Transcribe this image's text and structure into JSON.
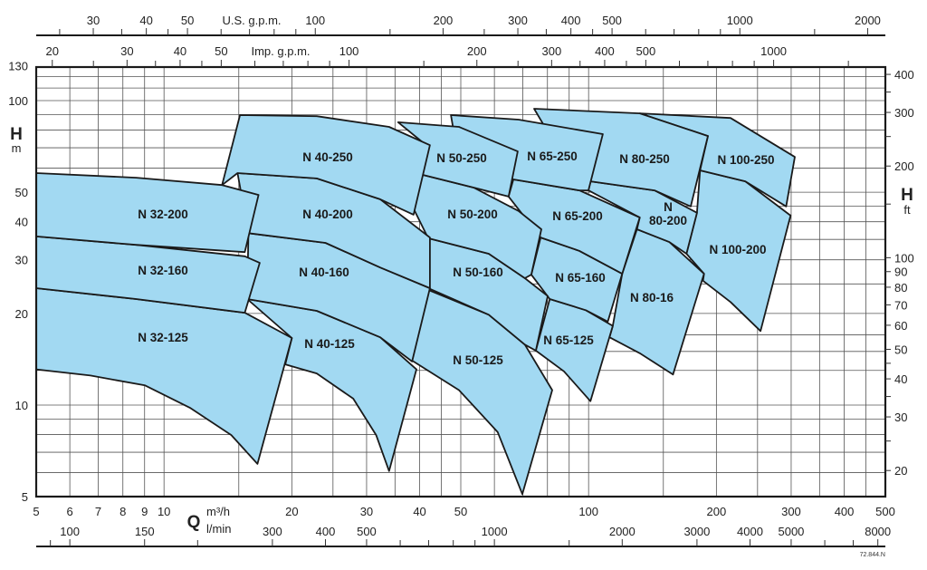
{
  "chart_data": {
    "type": "area",
    "x_scale": "log",
    "y_scale": "log",
    "xlim": [
      5,
      500
    ],
    "ylim": [
      5,
      130
    ],
    "grid": true,
    "fill_color": "#a2d9f2",
    "stroke_color": "#1a1a1a",
    "x_axes": {
      "m3h": {
        "symbol": "Q",
        "label": "m³/h",
        "ticks": [
          5,
          6,
          7,
          8,
          9,
          10,
          20,
          30,
          40,
          50,
          100,
          200,
          300,
          400,
          500
        ]
      },
      "lmin": {
        "label": "l/min",
        "ticks": [
          100,
          150,
          300,
          400,
          500,
          1000,
          2000,
          3000,
          4000,
          5000,
          8000
        ],
        "minor": [
          90,
          200,
          600,
          700,
          800,
          900,
          1500,
          6000,
          7000
        ]
      },
      "us_gpm": {
        "label": "U.S. g.p.m.",
        "ticks": [
          30,
          40,
          50,
          100,
          200,
          300,
          400,
          500,
          1000,
          2000
        ],
        "minor": [
          25,
          35,
          45,
          60,
          70,
          80,
          90,
          150,
          250,
          350,
          450,
          600,
          700,
          800,
          900,
          1500
        ]
      },
      "imp_gpm": {
        "label": "Imp. g.p.m.",
        "ticks": [
          20,
          30,
          40,
          50,
          100,
          200,
          300,
          400,
          500,
          1000
        ],
        "minor": [
          25,
          35,
          45,
          60,
          70,
          80,
          90,
          150,
          250,
          350,
          450,
          600,
          700,
          800,
          900,
          1500
        ]
      }
    },
    "y_axes": {
      "m": {
        "symbol": "H",
        "unit": "m",
        "ticks": [
          5,
          10,
          20,
          30,
          40,
          50,
          100,
          130
        ]
      },
      "ft": {
        "symbol": "H",
        "unit": "ft",
        "ticks": [
          20,
          30,
          40,
          50,
          60,
          70,
          80,
          90,
          100,
          200,
          300,
          400
        ],
        "minor": [
          25,
          35,
          45,
          150,
          250,
          350
        ]
      }
    },
    "grid_x": [
      6,
      7,
      8,
      9,
      10,
      15,
      20,
      25,
      30,
      35,
      40,
      45,
      50,
      60,
      70,
      80,
      90,
      100,
      150,
      200,
      250,
      300,
      350,
      400,
      450
    ],
    "grid_y": [
      6,
      7,
      8,
      9,
      10,
      13,
      15,
      17,
      20,
      25,
      30,
      35,
      40,
      45,
      50,
      60,
      70,
      80,
      90,
      100,
      110,
      120
    ],
    "series": [
      {
        "name": "N 100-200",
        "points": [
          [
            183,
            59.0
          ],
          [
            234,
            54.3
          ],
          [
            299,
            41.9
          ],
          [
            254,
            17.5
          ],
          [
            216,
            21.8
          ],
          [
            186,
            25.6
          ],
          [
            187,
            27.0
          ],
          [
            170,
            31.4
          ],
          [
            180,
            42.8
          ]
        ]
      },
      {
        "name": "N 100-250",
        "points": [
          [
            132,
            90.8
          ],
          [
            216,
            87.7
          ],
          [
            306,
            65.3
          ],
          [
            292,
            44.9
          ],
          [
            234,
            54.3
          ],
          [
            183,
            59.0
          ],
          [
            191,
            76.5
          ]
        ]
      },
      {
        "name": "N 80-16",
        "points": [
          [
            130,
            37.8
          ],
          [
            155,
            34.3
          ],
          [
            187,
            27.0
          ],
          [
            158,
            12.6
          ],
          [
            132,
            14.8
          ],
          [
            112,
            16.7
          ],
          [
            114,
            18.2
          ],
          [
            120,
            27.0
          ]
        ]
      },
      {
        "name": "N 80-200",
        "points": [
          [
            101,
            54.3
          ],
          [
            143,
            50.7
          ],
          [
            180,
            42.8
          ],
          [
            170,
            31.4
          ],
          [
            155,
            34.3
          ],
          [
            130,
            37.8
          ],
          [
            132,
            41.3
          ],
          [
            99.9,
            50.7
          ]
        ]
      },
      {
        "name": "N 80-250",
        "points": [
          [
            74.4,
            94.0
          ],
          [
            132,
            90.8
          ],
          [
            191,
            76.5
          ],
          [
            174,
            44.9
          ],
          [
            143,
            50.7
          ],
          [
            101,
            54.3
          ],
          [
            90,
            60
          ]
        ]
      },
      {
        "name": "N 65-125",
        "points": [
          [
            81.0,
            22.3
          ],
          [
            98.5,
            20.5
          ],
          [
            114,
            18.2
          ],
          [
            101,
            10.3
          ],
          [
            87.5,
            12.9
          ],
          [
            75.1,
            15.1
          ]
        ]
      },
      {
        "name": "N 65-160",
        "points": [
          [
            77.1,
            35.5
          ],
          [
            95.1,
            32.1
          ],
          [
            120,
            27.0
          ],
          [
            111,
            18.8
          ],
          [
            98.5,
            20.5
          ],
          [
            81.0,
            22.3
          ],
          [
            73.3,
            26.8
          ]
        ]
      },
      {
        "name": "N 65-200",
        "points": [
          [
            66.5,
            55.1
          ],
          [
            95.1,
            50.7
          ],
          [
            132,
            41.3
          ],
          [
            120,
            27.0
          ],
          [
            95.1,
            32.1
          ],
          [
            77.1,
            35.5
          ],
          [
            64.8,
            48.4
          ]
        ]
      },
      {
        "name": "N 65-250",
        "points": [
          [
            47.4,
            89.6
          ],
          [
            68.4,
            86.6
          ],
          [
            108,
            77.6
          ],
          [
            99.9,
            50.7
          ],
          [
            95.1,
            50.7
          ],
          [
            66.5,
            55.1
          ],
          [
            50,
            58
          ]
        ]
      },
      {
        "name": "N 50-125",
        "points": [
          [
            41.9,
            23.9
          ],
          [
            58.2,
            19.8
          ],
          [
            70.8,
            15.8
          ],
          [
            82.1,
            11.2
          ],
          [
            69.8,
            5.1
          ],
          [
            61.1,
            8.15
          ],
          [
            49.5,
            11.2
          ],
          [
            38.4,
            14.0
          ]
        ]
      },
      {
        "name": "N 50-160",
        "points": [
          [
            41.9,
            35.3
          ],
          [
            58.2,
            31.4
          ],
          [
            70.8,
            26.1
          ],
          [
            80.1,
            22.8
          ],
          [
            75.1,
            15.1
          ],
          [
            70.8,
            15.8
          ],
          [
            58.2,
            19.8
          ],
          [
            41.9,
            24.2
          ],
          [
            39.7,
            26.1
          ]
        ]
      },
      {
        "name": "N 50-200",
        "points": [
          [
            40.7,
            57.0
          ],
          [
            53.6,
            51.8
          ],
          [
            68.4,
            43.4
          ],
          [
            77.4,
            37.8
          ],
          [
            73.3,
            26.8
          ],
          [
            70.8,
            26.1
          ],
          [
            58.2,
            31.4
          ],
          [
            41.9,
            35.3
          ],
          [
            38.4,
            45.2
          ]
        ]
      },
      {
        "name": "N 50-250",
        "points": [
          [
            35.6,
            84.9
          ],
          [
            49.5,
            82.0
          ],
          [
            68.1,
            68.1
          ],
          [
            64.8,
            48.4
          ],
          [
            53.6,
            51.8
          ],
          [
            40.7,
            57.0
          ],
          [
            38.4,
            45.8
          ],
          [
            41.9,
            70.5
          ]
        ]
      },
      {
        "name": "N 40-125",
        "points": [
          [
            15.7,
            22.3
          ],
          [
            22.9,
            20.4
          ],
          [
            32.3,
            16.7
          ],
          [
            39.3,
            13.1
          ],
          [
            33.9,
            6.07
          ],
          [
            31.6,
            7.97
          ],
          [
            27.9,
            10.5
          ],
          [
            22.9,
            12.7
          ],
          [
            19.3,
            13.6
          ],
          [
            20.0,
            16.6
          ]
        ]
      },
      {
        "name": "N 40-160",
        "points": [
          [
            15.8,
            36.7
          ],
          [
            24.0,
            34.1
          ],
          [
            32.3,
            28.3
          ],
          [
            42.3,
            24.2
          ],
          [
            38.4,
            13.9
          ],
          [
            32.3,
            16.7
          ],
          [
            22.9,
            20.4
          ],
          [
            15.7,
            22.3
          ]
        ]
      },
      {
        "name": "N 40-200",
        "points": [
          [
            14.9,
            57.8
          ],
          [
            22.9,
            55.5
          ],
          [
            32.3,
            47.4
          ],
          [
            42.3,
            35.5
          ],
          [
            42.3,
            24.2
          ],
          [
            32.3,
            28.3
          ],
          [
            24.0,
            34.1
          ],
          [
            15.8,
            36.7
          ]
        ]
      },
      {
        "name": "N 40-250",
        "points": [
          [
            15.1,
            89.6
          ],
          [
            22.9,
            88.9
          ],
          [
            33.9,
            82.0
          ],
          [
            42.3,
            71.4
          ],
          [
            38.7,
            42.2
          ],
          [
            32.3,
            47.4
          ],
          [
            22.9,
            55.5
          ],
          [
            14.9,
            57.8
          ],
          [
            13.7,
            52.8
          ]
        ]
      },
      {
        "name": "N 32-125",
        "points": [
          [
            5,
            24.2
          ],
          [
            8.59,
            22.3
          ],
          [
            15.5,
            20.1
          ],
          [
            20.0,
            16.6
          ],
          [
            16.6,
            6.41
          ],
          [
            14.4,
            7.97
          ],
          [
            11.5,
            9.8
          ],
          [
            9.02,
            11.6
          ],
          [
            6.71,
            12.5
          ],
          [
            5,
            13.1
          ]
        ]
      },
      {
        "name": "N 32-160",
        "points": [
          [
            5,
            35.8
          ],
          [
            8.6,
            33.6
          ],
          [
            15.5,
            30.8
          ],
          [
            16.8,
            29.3
          ],
          [
            15.5,
            20.1
          ],
          [
            8.6,
            22.3
          ],
          [
            5,
            24.2
          ]
        ]
      },
      {
        "name": "N 32-200",
        "points": [
          [
            5,
            57.8
          ],
          [
            8.6,
            55.8
          ],
          [
            13.7,
            52.8
          ],
          [
            16.7,
            49.0
          ],
          [
            15.5,
            31.8
          ],
          [
            8.6,
            33.6
          ],
          [
            5,
            35.8
          ]
        ]
      }
    ]
  },
  "footer_code": "72.844.N"
}
